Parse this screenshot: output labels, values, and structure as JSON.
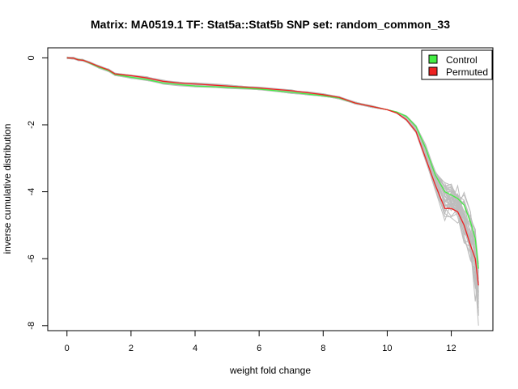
{
  "chart_data": {
    "type": "line",
    "title": "Matrix: MA0519.1 TF: Stat5a::Stat5b SNP set: random_common_33",
    "xlabel": "weight fold change",
    "ylabel": "inverse cumulative distribution",
    "xlim": [
      -0.6,
      13.3
    ],
    "ylim": [
      -8.15,
      0.3
    ],
    "xticks": [
      0,
      2,
      4,
      6,
      8,
      10,
      12
    ],
    "yticks": [
      0,
      -2,
      -4,
      -6,
      -8
    ],
    "legend": {
      "position": "top-right",
      "entries": [
        "Control",
        "Permuted"
      ]
    },
    "colors": {
      "control": "#44ee44",
      "permuted": "#ee2222",
      "background_sets": "#bdbdbd"
    },
    "series": [
      {
        "name": "Control",
        "x": [
          0.0,
          0.2,
          0.35,
          0.5,
          0.7,
          1.0,
          1.3,
          1.5,
          2.0,
          2.5,
          3.0,
          3.5,
          4.0,
          5.0,
          6.0,
          7.0,
          7.5,
          8.0,
          8.5,
          9.0,
          9.5,
          10.0,
          10.3,
          10.6,
          10.9,
          11.2,
          11.5,
          11.8,
          12.0,
          12.2,
          12.4,
          12.6,
          12.75,
          12.85
        ],
        "y": [
          0.0,
          -0.01,
          -0.05,
          -0.07,
          -0.15,
          -0.28,
          -0.38,
          -0.5,
          -0.58,
          -0.65,
          -0.75,
          -0.8,
          -0.84,
          -0.88,
          -0.93,
          -1.03,
          -1.08,
          -1.13,
          -1.2,
          -1.35,
          -1.45,
          -1.55,
          -1.62,
          -1.75,
          -2.05,
          -2.7,
          -3.5,
          -4.0,
          -4.1,
          -4.2,
          -4.4,
          -4.9,
          -5.4,
          -6.3
        ]
      },
      {
        "name": "Permuted",
        "x": [
          0.0,
          0.2,
          0.35,
          0.5,
          0.7,
          1.0,
          1.3,
          1.5,
          2.0,
          2.5,
          3.0,
          3.5,
          4.0,
          5.0,
          6.0,
          7.0,
          7.5,
          8.0,
          8.5,
          9.0,
          9.5,
          10.0,
          10.3,
          10.6,
          10.9,
          11.2,
          11.5,
          11.8,
          12.0,
          12.2,
          12.4,
          12.6,
          12.75,
          12.85
        ],
        "y": [
          0.0,
          -0.01,
          -0.06,
          -0.07,
          -0.14,
          -0.26,
          -0.36,
          -0.48,
          -0.53,
          -0.6,
          -0.7,
          -0.75,
          -0.78,
          -0.84,
          -0.9,
          -0.98,
          -1.04,
          -1.1,
          -1.18,
          -1.35,
          -1.45,
          -1.55,
          -1.65,
          -1.85,
          -2.2,
          -3.0,
          -3.8,
          -4.5,
          -4.5,
          -4.6,
          -5.0,
          -5.6,
          -6.0,
          -6.8
        ]
      }
    ]
  }
}
